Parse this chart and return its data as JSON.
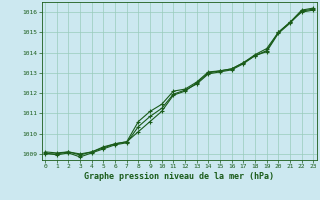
{
  "title": "Graphe pression niveau de la mer (hPa)",
  "background_color": "#cce8f0",
  "grid_color": "#99ccbb",
  "line_color": "#1a5c1a",
  "xlim": [
    -0.3,
    23.3
  ],
  "ylim": [
    1008.7,
    1016.5
  ],
  "xticks": [
    0,
    1,
    2,
    3,
    4,
    5,
    6,
    7,
    8,
    9,
    10,
    11,
    12,
    13,
    14,
    15,
    16,
    17,
    18,
    19,
    20,
    21,
    22,
    23
  ],
  "yticks": [
    1009,
    1010,
    1011,
    1012,
    1013,
    1014,
    1015,
    1016
  ],
  "series1": [
    1009.0,
    1009.0,
    1009.1,
    1009.0,
    1009.1,
    1009.3,
    1009.5,
    1009.6,
    1010.1,
    1010.6,
    1011.1,
    1011.9,
    1012.1,
    1012.5,
    1013.0,
    1013.1,
    1013.2,
    1013.5,
    1013.9,
    1014.2,
    1015.0,
    1015.5,
    1016.1,
    1016.2
  ],
  "series2": [
    1009.05,
    1008.95,
    1009.05,
    1008.85,
    1009.05,
    1009.25,
    1009.45,
    1009.55,
    1010.35,
    1010.85,
    1011.25,
    1011.95,
    1012.15,
    1012.45,
    1012.95,
    1013.05,
    1013.15,
    1013.45,
    1013.85,
    1014.05,
    1014.95,
    1015.45,
    1016.05,
    1016.15
  ],
  "series3": [
    1009.1,
    1009.05,
    1009.1,
    1008.95,
    1009.1,
    1009.35,
    1009.5,
    1009.6,
    1010.6,
    1011.1,
    1011.45,
    1012.1,
    1012.2,
    1012.55,
    1013.05,
    1013.1,
    1013.2,
    1013.5,
    1013.85,
    1014.1,
    1015.0,
    1015.5,
    1016.0,
    1016.1
  ]
}
